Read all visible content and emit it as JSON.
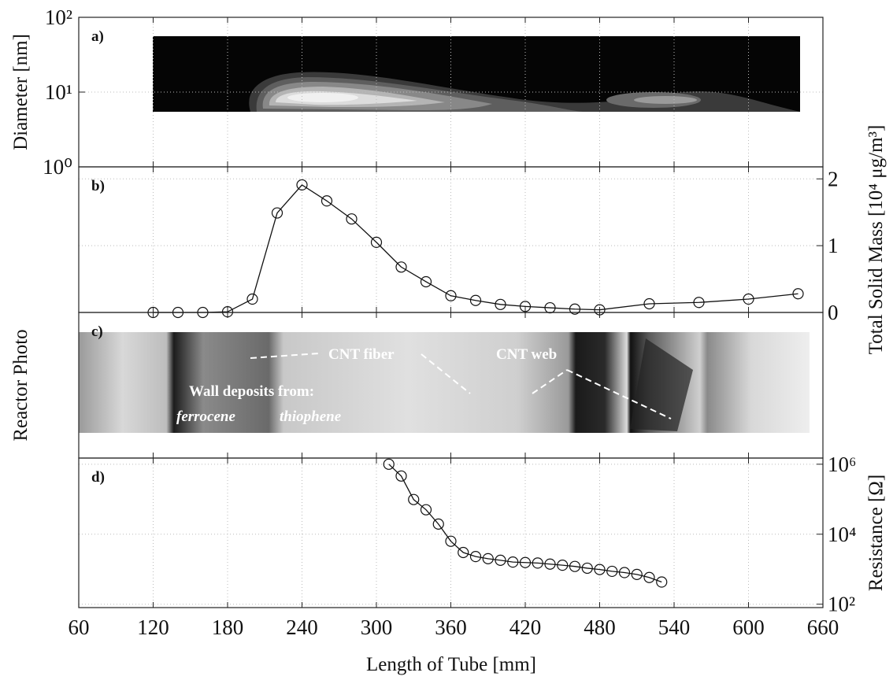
{
  "chart_data": [
    {
      "type": "contour",
      "label": "a)",
      "ylabel": "Diameter [nm]",
      "log_y": true,
      "ylim": [
        1,
        100
      ],
      "yticks": [
        {
          "value": 1,
          "label": "10⁰"
        },
        {
          "value": 10,
          "label": "10¹"
        },
        {
          "value": 100,
          "label": "10²"
        }
      ],
      "xlim": [
        60,
        660
      ],
      "grid": true
    },
    {
      "type": "line",
      "label": "b)",
      "ylabel": "Total Solid Mass [10⁴ μg/m³]",
      "color": "#111111",
      "xlim": [
        60,
        660
      ],
      "ylim": [
        0,
        2.18
      ],
      "yticks": [
        0,
        1,
        2
      ],
      "grid": true,
      "x": [
        120,
        140,
        160,
        180,
        200,
        220,
        240,
        260,
        280,
        300,
        320,
        340,
        360,
        380,
        400,
        420,
        440,
        460,
        480,
        520,
        560,
        600,
        640
      ],
      "values": [
        0,
        0,
        0,
        0.01,
        0.2,
        1.49,
        1.91,
        1.67,
        1.4,
        1.05,
        0.68,
        0.46,
        0.25,
        0.18,
        0.12,
        0.09,
        0.07,
        0.05,
        0.04,
        0.13,
        0.15,
        0.2,
        0.28
      ]
    },
    {
      "type": "image",
      "label": "c)",
      "ylabel": "Reactor Photo",
      "annotations": [
        "CNT fiber",
        "CNT web",
        "Wall deposits from:",
        "ferrocene",
        "thiophene"
      ]
    },
    {
      "type": "line",
      "label": "d)",
      "ylabel": "Resistance [Ω]",
      "log_y": true,
      "color": "#111111",
      "xlim": [
        60,
        660
      ],
      "ylim": [
        80,
        1500000
      ],
      "yticks": [
        {
          "value": 100,
          "label": "10²"
        },
        {
          "value": 10000,
          "label": "10⁴"
        },
        {
          "value": 1000000,
          "label": "10⁶"
        }
      ],
      "grid": true,
      "xlabel": "Length of Tube [mm]",
      "xticks": [
        60,
        120,
        180,
        240,
        300,
        360,
        420,
        480,
        540,
        600,
        660
      ],
      "x": [
        310,
        320,
        330,
        340,
        350,
        360,
        370,
        380,
        390,
        400,
        410,
        420,
        430,
        440,
        450,
        460,
        470,
        480,
        490,
        500,
        510,
        520,
        530
      ],
      "values": [
        1000000,
        460000,
        98000,
        50000,
        19500,
        6300,
        3000,
        2300,
        2000,
        1800,
        1600,
        1550,
        1500,
        1400,
        1300,
        1200,
        1070,
        980,
        870,
        800,
        710,
        580,
        430
      ]
    }
  ]
}
